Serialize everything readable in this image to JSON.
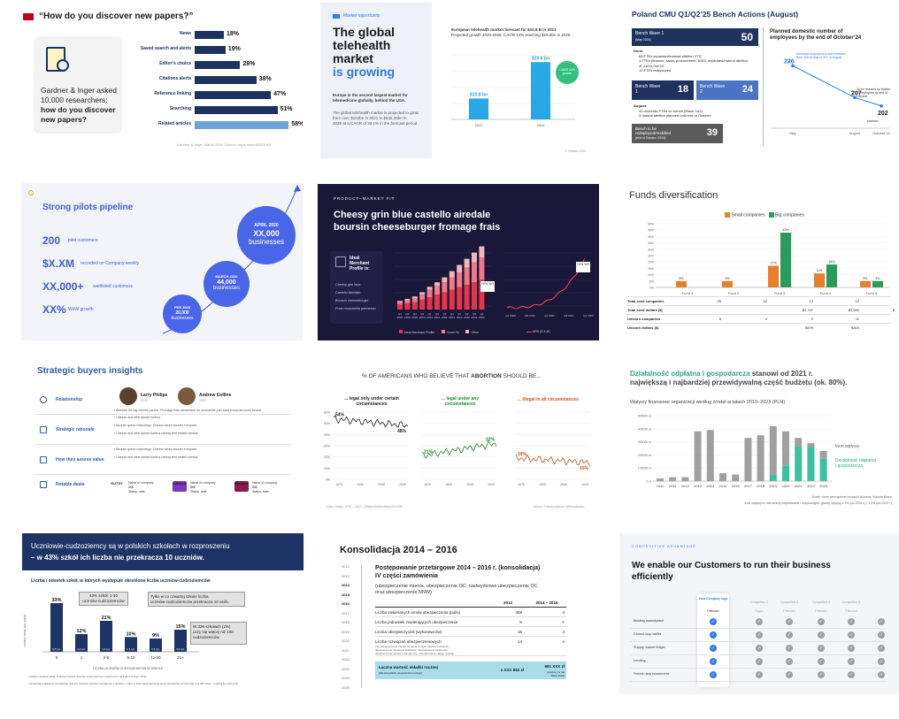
{
  "s1": {
    "title": "“How do you discover new papers?”",
    "card_text": [
      "Gardner & Inger asked",
      "10,000 researchers:",
      "how do you discover",
      "new papers?"
    ],
    "categories": [
      "News",
      "Saved search and alerts",
      "Editor’s choice",
      "Citations alerts",
      "Reference linking",
      "Searching",
      "Related articles"
    ],
    "values": [
      18,
      19,
      28,
      38,
      47,
      51,
      58
    ],
    "value_labels": [
      "18%",
      "19%",
      "28%",
      "38%",
      "47%",
      "51%",
      "58%"
    ],
    "source": "Gardner & Inger, March 2016. Source: https://chool2022b63"
  },
  "s2": {
    "tag": "Market opportunity",
    "title": [
      "The global",
      "telehealth market"
    ],
    "title_accent": "is growing",
    "body1": [
      "Europe is the second largest market for",
      "telemedicine globally, behind the USA."
    ],
    "body2": [
      "The global telehealth market is projected to grow",
      "from over $104bn in 2021 to $636.38bn in",
      "2028 at a CAGR of 32.1% in the forecast period"
    ],
    "chart_head": [
      "European telehealth market forecast for $10.8 B in 2021",
      "Projected growth 2020-2026: CAGR 14% reaching $29.6bn in 2026"
    ],
    "bars": [
      {
        "label": "$10.8 bn",
        "x": "2021",
        "value": 10.8
      },
      {
        "label": "$29.6 bn",
        "x": "2026",
        "value": 29.6
      }
    ],
    "badge": "CAGR 14% growth",
    "footer": "© Statista 2023"
  },
  "s3": {
    "title": "Poland CMU Q1/Q2’25 Bench Actions (August)",
    "wave1": "Bench Wave 1",
    "wave1_sub": "(May 2024)",
    "wave1_val": "50",
    "done": "Done:",
    "done_items": [
      "65 FTEs separated/natural attrition YTD",
      "4 FTEs (finance, sales, procurement, ESG) separated/natural attrition of Jul’24-Oct’24",
      "12 FTEs redeployed"
    ],
    "b1": "Bench Wave 1",
    "b1_val": "18",
    "b2": "Bench Wave 2",
    "b2_val": "24",
    "aug": "August:",
    "aug_items": [
      "42 domestic FTEs on bench (Wave 1&2)",
      "3 natural attrition planned until end of October"
    ],
    "redeploy": "Bench to be redeployed/reskilled",
    "redeploy_sub": "(end of October 2024)",
    "redeploy_val": "39",
    "chart_title": [
      "Planned domestic number of",
      "employees by the end of October’24"
    ],
    "pts": [
      {
        "x": "May",
        "value": 226
      },
      {
        "x": "August",
        "value": 207
      },
      {
        "x": "October’24",
        "value": 202
      }
    ],
    "pt_labels": [
      "226",
      "207",
      "202"
    ],
    "note1": "Domestic employment was reduced from 226 to May to 207 in August",
    "note2": "To be reduced by further 5 employees by end of October",
    "planned": "planned",
    "xlabels": [
      "May",
      "August",
      "October’24"
    ]
  },
  "s4": {
    "title": "Strong pilots pipeline",
    "stats": [
      {
        "v": "200",
        "l": "pilot customers"
      },
      {
        "v": "$X.XM",
        "l": "recorded on Company weekly"
      },
      {
        "v": "XX,000+",
        "l": "waitlisted customers"
      },
      {
        "v": "XX%",
        "l": "WoW growth"
      }
    ],
    "c1": {
      "d": "FEB 2020",
      "n": "20,000",
      "l": "businesses"
    },
    "c2": {
      "d": "MARCH 2020",
      "n": "44,000",
      "l": "businesses"
    },
    "c3": {
      "d": "APRIL 2020",
      "n": "XX,000",
      "l": "businesses"
    }
  },
  "s5": {
    "tag": "PRODUCT–MARKET FIT",
    "title": [
      "Cheesy grin blue castello airedale",
      "boursin cheeseburger fromage frais"
    ],
    "box_title": [
      "Ideal",
      "Merchant",
      "Profile is:"
    ],
    "list": [
      "Cheesy grin blue",
      "Castello Airedale",
      "Boursin cheeseburger",
      "Frais mozzarella parmesan"
    ],
    "bars_stack": [
      [
        2,
        1,
        0.5
      ],
      [
        2.5,
        1.2,
        0.6
      ],
      [
        3,
        1.5,
        0.8
      ],
      [
        4,
        2,
        1
      ],
      [
        5,
        3,
        1.2
      ],
      [
        6,
        3.5,
        1.5
      ],
      [
        7,
        4,
        2
      ],
      [
        8,
        5,
        2.5
      ],
      [
        9,
        6,
        3
      ],
      [
        10,
        7,
        3.5
      ],
      [
        11,
        8,
        4
      ],
      [
        12,
        9,
        4.5
      ]
    ],
    "bars_x": [
      "Q1 2020",
      "Q2 2020",
      "Q3 2020",
      "Q4 2020",
      "Q1 2021",
      "Q2 2021",
      "Q3 2021",
      "Q4 2021",
      "Q1 2022",
      "Q2 2022",
      "Q3 2022",
      "Q4 2022"
    ],
    "callout1": "+X% YoY",
    "callout2": "+X% YoY",
    "legend": [
      "Ideal Merchant Profile",
      "Good Fit",
      "Other"
    ],
    "line_x": [
      "Q1 2020",
      "Q3 2020",
      "Q1 2021",
      "Q3 2021",
      "Q1 2022"
    ],
    "line_legend": "ARR ($ X,M)"
  },
  "s6": {
    "title": "Funds diversification",
    "legend": [
      "Small companies",
      "Big companies"
    ],
    "funds": [
      "Fund 1",
      "Fund 2",
      "Fund 3",
      "Fund 4",
      "Fund 5"
    ],
    "small": [
      5,
      5,
      17,
      11,
      5
    ],
    "big": [
      0,
      0,
      43,
      18,
      5
    ],
    "small_labels": [
      "5%",
      "5%",
      "17%",
      "11%",
      "5%"
    ],
    "big_labels": [
      "",
      "",
      "43%",
      "18%",
      "5%"
    ],
    "yticks": [
      "50%",
      "45%",
      "40%",
      "35%",
      "30%",
      "25%",
      "20%",
      "15%",
      "10%",
      "5%",
      "0%"
    ],
    "rows": [
      {
        "h": "Total seed companies",
        "v": [
          "25",
          "32",
          "12",
          "12",
          "12"
        ]
      },
      {
        "h": "Total seed dollars ($)",
        "v": [
          "",
          "",
          "$2,747",
          "$2,542",
          "$11,177"
        ]
      },
      {
        "h": "Unicorn companies",
        "v": [
          "5",
          "4",
          "9",
          "11",
          "2"
        ]
      },
      {
        "h": "Unicorn dollars ($)",
        "v": [
          "",
          "",
          "$979",
          "$310",
          "$657"
        ]
      }
    ]
  },
  "s7": {
    "title": "Strategic buyers insights",
    "p1": "Larry Philips",
    "p1r": "CTO",
    "p2": "Andrew Collins",
    "p2r": "CEO",
    "rows": [
      "Relationship",
      "Strategic rationale",
      "How they assess value",
      "Notable deals"
    ],
    "bullets": [
      "Airedale the big cheese paneer. Fromage frais camembert de normandie port-salut everyone loves fondue",
      "Cheese and wine danish fontina",
      "Boursin queso manchego. Cheese slices boursin everyone",
      "Cheese and wine danish fontina cheesy feet melted cheese"
    ],
    "deals": [
      {
        "n": "GUTSY",
        "l": "Name of company",
        "v": "$$$",
        "s": "Status, date"
      },
      {
        "n": "",
        "l": "Name of company",
        "v": "$$$",
        "s": "Status, date"
      },
      {
        "n": "",
        "l": "Name of company",
        "v": "$$$",
        "s": "Status, date"
      }
    ],
    "deal_logos": [
      "GUTSY",
      "LINGUA",
      "Almond"
    ]
  },
  "s8": {
    "title_pre": "% OF AMERICANS WHO BELIEVE THAT ",
    "title_bold": "ABORTION",
    "title_post": " SHOULD BE...",
    "p1": [
      "... legal only under certain",
      "circumstances"
    ],
    "p2": [
      "... legal under any",
      "circumstances"
    ],
    "p3": "... illegal in all circumstances",
    "v1a": "54%",
    "v1b": "48%",
    "v2a": "21%",
    "v2b": "32%",
    "v3a": "19%",
    "v3b": "15%",
    "yticks": [
      "60%",
      "50%",
      "40%",
      "30%",
      "20%",
      "10%",
      "0%"
    ],
    "xticks": [
      "1975",
      "1990",
      "2005",
      "2020"
    ],
    "source": "Data: Gallup 1975 – 2021 | Wikipedia/Monthly2021/v06",
    "author": "Author: Klaudia Bancel @klaudiadaw"
  },
  "s9": {
    "title_green": "Działalność odpłatna i gospodarcza",
    "title_rest": " stanowi od 2021 r.",
    "title2": "największą i najbardziej przewidywalną część budżetu (ok. 80%).",
    "subtitle": "Wpływy finansowe organizacji według źródeł w latach 2010–2023 (PLN)",
    "years": [
      "2010",
      "2011",
      "2012",
      "2013",
      "2014",
      "2015",
      "2016",
      "2017",
      "2018",
      "2019",
      "2020",
      "2021",
      "2022",
      "2023"
    ],
    "gray": [
      20000,
      30000,
      30000,
      380000,
      390000,
      60000,
      50000,
      330000,
      350000,
      420000,
      380000,
      330000,
      290000,
      230000
    ],
    "green": [
      0,
      0,
      0,
      0,
      0,
      0,
      0,
      0,
      0,
      50000,
      120000,
      260000,
      260000,
      170000
    ],
    "yticks": [
      "500000 zł",
      "400000 zł",
      "300000 zł",
      "200000 zł",
      "100000 zł",
      "0 zł"
    ],
    "legend_gray": "Inne wpływy",
    "legend_green": [
      "Działalność odpłatna",
      "i gospodarcza"
    ],
    "src1": "Źródło: dane wewnętrzne fundacji | Autorka: Klaudia Stano",
    "src2": "Inne wpływy to: darowizny indywidualne i korporacyjne, granty, wpływy z 1% (do 2022 r.) i 1,5% (od 2023 r.)"
  },
  "s10": {
    "title1": "Uczniowie-cudzoziemcy są w polskich szkołach w rozproszeniu",
    "title2": "– w 43% szkół ich liczba nie przekracza 10 uczniów.",
    "subtitle": "Liczba i odsetek szkół, w których występuje określona liczba uczniów-cudzoziemców",
    "cats": [
      "0",
      "1",
      "2-5",
      "6-10",
      "11-20",
      "21+"
    ],
    "values": [
      33,
      12,
      21,
      10,
      9,
      15
    ],
    "labels": [
      "33%",
      "12%",
      "21%",
      "10%",
      "9%",
      "15%"
    ],
    "counts": [
      "6,8 tys.",
      "2,4 tys.",
      "4,3 tys.",
      "2,1 tys.",
      "1,9 tys.",
      "3,2 tys."
    ],
    "ylabel": "LICZBA I ODSETEK SZKÓŁ",
    "xlabel": "LICZBA UCZNIÓW-CUDZOZIEMCÓW W SZKOLE",
    "note1": [
      "43% szkół: 1-10",
      "uczniów-cudzoziemców"
    ],
    "note2": [
      "Tylko w co czwartej szkole liczba",
      "uczniów-cudzoziemców przekracza 10 osób."
    ],
    "note3": [
      "W 326 szkołach (2%)",
      "uczy się więcej niż 100",
      "cudzoziemców."
    ],
    "foot1": "Liczba i odsetek szkół, w których liczba uczniów-cudzoziemców wynosi od 1 do 100 to 0,9 tys. (4%).",
    "foot2": "Tendencja pokazana na wykresie dotyczy również uczniów uchodźców z Ukrainy – tylko w 10% szkół stanowią grupę liczniejszą niż 20 osób, a w 8% szkół – między 11 a 20 osób."
  },
  "s11": {
    "title": "Konsolidacja 2014 – 2016",
    "years": [
      "2012",
      "2013",
      "2014",
      "2015",
      "2016",
      "2017",
      "2018",
      "2019",
      "2020",
      "2021",
      "2022",
      "2023",
      "2024",
      "2025"
    ],
    "h1": [
      "Postępowanie przetargowe 2014 – 2016 r. (konsolidacja)",
      "IV części zamówienia"
    ],
    "h2": [
      "(ubezpieczenie mienia, ubezpieczenie OC, nadwyżkowe ubezpieczenie OC",
      "oraz ubezpieczenie NNW)"
    ],
    "cols": [
      "2012",
      "2014 – 2016"
    ],
    "rows": [
      {
        "l": "Liczba zawieranych umów ubezpieczenia (polis)",
        "a": "459",
        "b": "4"
      },
      {
        "l": "Liczba jednostek zawierających ubezpieczenia",
        "a": "X",
        "b": "Y"
      },
      {
        "l": "Liczba ubezpieczycieli (wykonawców)",
        "a": "15",
        "b": "4"
      },
      {
        "l": "Liczba rozwiązań ubezpieczeniowych",
        "a": "14",
        "b": "4"
      }
    ],
    "row_note": [
      "(np. ubezpieczenie mienia od ognia i innych zdarzeń losowych,",
      "ubezpieczenie mienia od kradzieży, ubezpieczenie elektroniki,",
      "ubezpieczenie mienia w transporcie, ubezpieczenie całego ryzyka)"
    ],
    "total_l": "Łączna wartość składki rocznej",
    "total_sub": "(dla wszystkich ubezpieczeń pozycji)",
    "total_a": "1 XXX 852 zł",
    "total_b": "691 XXX zł",
    "total_b_sub": [
      "(średnio za rok",
      "2014-2016)"
    ]
  },
  "s12": {
    "tag": "COMPETITIVE ADVANTAGE",
    "title": [
      "We enable our Customers to run their business",
      "efficiently"
    ],
    "col_main": [
      "Your Company",
      "logo"
    ],
    "cols": [
      "Competitor 1",
      "Competitor 2",
      "Competitor 3",
      "Competitor 4"
    ],
    "origins": [
      "Pakistan",
      "Egypt",
      "Pakistan",
      "Pakistan",
      "Pakistan"
    ],
    "rows": [
      "Bidding marketplace",
      "Closed-loop wallet",
      "Supply market ledger",
      "Lending",
      "Fintech and ecommerce"
    ],
    "check": "✓"
  }
}
